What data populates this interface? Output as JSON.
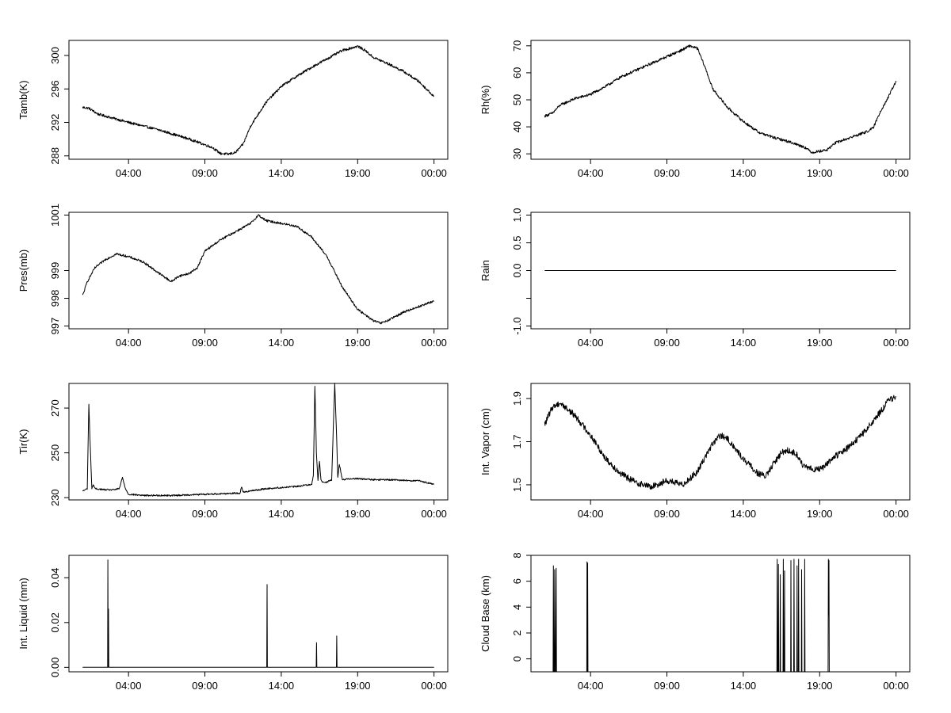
{
  "chart_data": [
    {
      "type": "line",
      "ylabel": "Tamb(K)",
      "x_ticks": [
        "04:00",
        "09:00",
        "14:00",
        "19:00",
        "00:00"
      ],
      "y_ticks": [
        288,
        292,
        296,
        300
      ],
      "ylim": [
        287.6,
        301.8
      ],
      "noise": 0.15,
      "series": [
        {
          "x": [
            1.0,
            1.4,
            2.0,
            4.0,
            6.0,
            8.0,
            9.5,
            10.0,
            10.5,
            11.0,
            11.5,
            12.0,
            13.0,
            14.0,
            15.0,
            16.0,
            17.0,
            18.0,
            19.0,
            19.5,
            20.0,
            21.0,
            22.0,
            23.0,
            23.5,
            24.0
          ],
          "y": [
            293.8,
            293.7,
            293.0,
            292.0,
            291.1,
            290.0,
            289.0,
            288.3,
            288.2,
            288.4,
            289.4,
            291.6,
            294.4,
            296.3,
            297.5,
            298.6,
            299.6,
            300.6,
            301.1,
            300.6,
            299.8,
            299.0,
            298.1,
            296.9,
            296.0,
            295.1
          ]
        }
      ]
    },
    {
      "type": "line",
      "ylabel": "Rh(%)",
      "x_ticks": [
        "04:00",
        "09:00",
        "14:00",
        "19:00",
        "00:00"
      ],
      "y_ticks": [
        30,
        40,
        50,
        60,
        70
      ],
      "ylim": [
        28,
        72
      ],
      "noise": 0.5,
      "series": [
        {
          "x": [
            1.0,
            1.5,
            2.0,
            3.0,
            4.0,
            5.0,
            6.0,
            7.0,
            8.0,
            9.0,
            10.0,
            10.5,
            11.0,
            11.5,
            12.0,
            13.0,
            14.0,
            15.0,
            16.0,
            17.0,
            18.0,
            18.5,
            19.0,
            19.5,
            20.0,
            21.0,
            22.0,
            22.5,
            23.0,
            23.5,
            24.0
          ],
          "y": [
            44.0,
            45.0,
            48.0,
            50.5,
            52.0,
            55.0,
            58.5,
            61.0,
            63.5,
            66.0,
            68.5,
            70.0,
            69.0,
            62.0,
            54.0,
            47.0,
            42.0,
            38.0,
            36.0,
            34.5,
            32.5,
            30.5,
            31.0,
            31.5,
            34.0,
            36.0,
            38.0,
            39.5,
            46.0,
            51.0,
            57.0
          ]
        }
      ]
    },
    {
      "type": "line",
      "ylabel": "Pres(mb)",
      "x_ticks": [
        "04:00",
        "09:00",
        "14:00",
        "19:00",
        "00:00"
      ],
      "y_ticks": [
        997,
        998,
        999,
        1001
      ],
      "ylim": [
        996.9,
        1001.1
      ],
      "noise": 0.04,
      "series": [
        {
          "x": [
            1.0,
            1.3,
            1.8,
            2.5,
            3.2,
            4.0,
            5.0,
            6.0,
            6.8,
            7.3,
            8.0,
            8.5,
            9.0,
            10.0,
            11.0,
            12.0,
            12.5,
            13.0,
            14.0,
            15.0,
            16.0,
            17.0,
            18.0,
            19.0,
            20.0,
            20.5,
            21.0,
            22.0,
            23.0,
            24.0
          ],
          "y": [
            998.1,
            998.6,
            999.1,
            999.4,
            999.6,
            999.5,
            999.3,
            998.9,
            998.6,
            998.8,
            998.9,
            999.1,
            999.7,
            1000.1,
            1000.4,
            1000.7,
            1001.0,
            1000.8,
            1000.7,
            1000.6,
            1000.2,
            999.5,
            998.4,
            997.6,
            997.2,
            997.1,
            997.2,
            997.5,
            997.7,
            997.9
          ]
        }
      ]
    },
    {
      "type": "line",
      "ylabel": "Rain",
      "x_ticks": [
        "04:00",
        "09:00",
        "14:00",
        "19:00",
        "00:00"
      ],
      "y_ticks": [
        -1.0,
        -0.5,
        0.0,
        0.5,
        1.0
      ],
      "y_tick_labels": [
        "-1.0",
        "",
        "0.0",
        "0.5",
        "1.0"
      ],
      "ylim": [
        -1.05,
        1.05
      ],
      "noise": 0,
      "series": [
        {
          "x": [
            1.0,
            24.0
          ],
          "y": [
            0.0,
            0.0
          ]
        }
      ]
    },
    {
      "type": "line",
      "ylabel": "Tir(K)",
      "x_ticks": [
        "04:00",
        "09:00",
        "14:00",
        "19:00",
        "00:00"
      ],
      "y_ticks": [
        230,
        250,
        270
      ],
      "ylim": [
        229,
        281
      ],
      "noise": 0.35,
      "series": [
        {
          "x": [
            1.0,
            1.3,
            1.4,
            1.5,
            1.6,
            1.7,
            1.8,
            2.5,
            3.0,
            3.4,
            3.6,
            3.8,
            4.0,
            5.0,
            7.0,
            9.0,
            11.0,
            11.3,
            11.4,
            11.5,
            12.0,
            13.0,
            15.0,
            16.0,
            16.1,
            16.2,
            16.3,
            16.4,
            16.5,
            16.6,
            16.7,
            17.0,
            17.3,
            17.4,
            17.5,
            17.6,
            17.7,
            17.8,
            18.0,
            18.5,
            19.0,
            20.0,
            21.0,
            23.0,
            24.0
          ],
          "y": [
            233.0,
            234.0,
            272.0,
            252.0,
            234.0,
            236.0,
            234.0,
            233.5,
            233.5,
            234.0,
            239.0,
            234.0,
            231.5,
            231.0,
            231.0,
            231.5,
            232.0,
            232.0,
            235.0,
            232.5,
            233.0,
            234.0,
            235.0,
            236.0,
            240.0,
            280.0,
            250.0,
            238.0,
            246.0,
            238.0,
            237.0,
            237.0,
            238.0,
            260.0,
            281.0,
            262.0,
            239.0,
            245.0,
            238.0,
            238.5,
            238.5,
            238.0,
            238.0,
            237.5,
            236.0
          ]
        }
      ]
    },
    {
      "type": "line",
      "ylabel": "Int. Vapor (cm)",
      "x_ticks": [
        "04:00",
        "09:00",
        "14:00",
        "19:00",
        "00:00"
      ],
      "y_ticks": [
        1.5,
        1.7,
        1.9
      ],
      "ylim": [
        1.43,
        1.97
      ],
      "noise": 0.015,
      "series": [
        {
          "x": [
            1.0,
            1.5,
            2.0,
            3.0,
            4.0,
            5.0,
            6.0,
            7.0,
            8.0,
            9.0,
            10.0,
            11.0,
            11.5,
            12.0,
            12.5,
            13.0,
            14.0,
            15.0,
            15.5,
            16.0,
            16.5,
            17.0,
            17.5,
            18.0,
            19.0,
            20.0,
            21.0,
            22.0,
            23.0,
            23.5,
            24.0
          ],
          "y": [
            1.78,
            1.86,
            1.88,
            1.82,
            1.73,
            1.62,
            1.55,
            1.51,
            1.49,
            1.52,
            1.5,
            1.56,
            1.63,
            1.69,
            1.73,
            1.71,
            1.62,
            1.55,
            1.54,
            1.6,
            1.65,
            1.66,
            1.64,
            1.58,
            1.57,
            1.63,
            1.68,
            1.75,
            1.84,
            1.89,
            1.91
          ]
        }
      ]
    },
    {
      "type": "line",
      "ylabel": "Int. Liquid (mm)",
      "x_ticks": [
        "04:00",
        "09:00",
        "14:00",
        "19:00",
        "00:00"
      ],
      "y_ticks": [
        0.0,
        0.02,
        0.04
      ],
      "y_tick_labels": [
        "0.00",
        "0.02",
        "0.04"
      ],
      "ylim": [
        -0.002,
        0.05
      ],
      "noise": 0,
      "series": [
        {
          "x": [
            1.0,
            2.63,
            2.65,
            2.67,
            2.69,
            2.71,
            2.73,
            13.05,
            13.07,
            13.09,
            13.11,
            16.29,
            16.31,
            16.33,
            17.61,
            17.63,
            17.65,
            24.0
          ],
          "y": [
            0.0,
            0.0,
            0.048,
            0.0,
            0.026,
            0.0,
            0.0,
            0.0,
            0.037,
            0.0,
            0.0,
            0.0,
            0.011,
            0.0,
            0.0,
            0.014,
            0.0,
            0.0
          ]
        }
      ]
    },
    {
      "type": "line",
      "ylabel": "Cloud Base (km)",
      "x_ticks": [
        "04:00",
        "09:00",
        "14:00",
        "19:00",
        "00:00"
      ],
      "y_ticks": [
        0,
        2,
        4,
        6,
        8
      ],
      "ylim": [
        -1.0,
        8.0
      ],
      "noise": 0,
      "series": [
        {
          "x": [
            1.0,
            1.55,
            1.57,
            1.59,
            1.63,
            1.65,
            1.67,
            1.69,
            1.73,
            1.75,
            1.77,
            3.75,
            3.77,
            3.79,
            3.81,
            3.83,
            16.2,
            16.22,
            16.24,
            16.28,
            16.3,
            16.32,
            16.4,
            16.42,
            16.44,
            16.6,
            16.62,
            16.64,
            16.68,
            16.7,
            16.72,
            17.1,
            17.12,
            17.14,
            17.3,
            17.32,
            17.34,
            17.5,
            17.52,
            17.54,
            17.6,
            17.62,
            17.64,
            17.8,
            17.82,
            17.84,
            18.0,
            18.02,
            18.04,
            19.55,
            19.57,
            19.59,
            19.61,
            19.63,
            24.0
          ],
          "y": [
            -1.0,
            -1.0,
            7.2,
            -1.0,
            -1.0,
            6.9,
            3.0,
            -1.0,
            -1.0,
            7.0,
            -1.0,
            -1.0,
            7.5,
            -1.0,
            7.4,
            -1.0,
            -1.0,
            7.7,
            -1.0,
            -1.0,
            7.3,
            -1.0,
            -1.0,
            6.5,
            -1.0,
            -1.0,
            7.7,
            -1.0,
            -1.0,
            6.8,
            -1.0,
            -1.0,
            7.6,
            -1.0,
            -1.0,
            7.7,
            -1.0,
            -1.0,
            7.2,
            -1.0,
            -1.0,
            7.7,
            -1.0,
            -1.0,
            6.9,
            -1.0,
            -1.0,
            7.7,
            -1.0,
            -1.0,
            7.7,
            3.4,
            7.6,
            -1.0,
            -1.0
          ]
        }
      ]
    }
  ]
}
